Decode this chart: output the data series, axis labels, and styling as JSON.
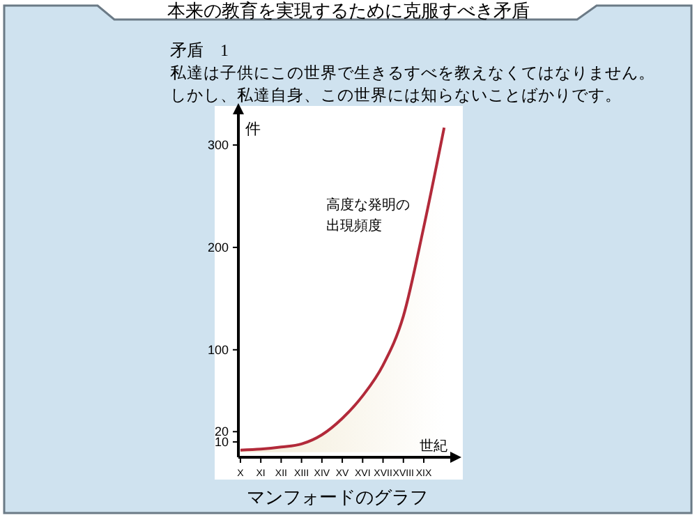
{
  "chart_data": {
    "type": "area",
    "title": "本来の教育を実現するために克服すべき矛盾",
    "subtitle": "矛盾　1",
    "annotations": [
      "私達は子供にこの世界で生きるすべを教えなくてはなりません。",
      "しかし、私達自身、この世界には知らないことばかりです。",
      "高度な発明の出現頻度",
      "マンフォードのグラフ"
    ],
    "xlabel": "世紀",
    "ylabel": "件",
    "categories": [
      "X",
      "XI",
      "XII",
      "XIII",
      "XIV",
      "XV",
      "XVI",
      "XVII",
      "XVIII",
      "XIX",
      null
    ],
    "series": [
      {
        "color": "#b22a3a",
        "values": [
          2,
          3,
          5,
          8,
          17,
          33,
          55,
          85,
          133,
          220,
          317
        ]
      }
    ],
    "ylim": [
      -5,
      330
    ],
    "yticks": [
      10,
      20,
      100,
      200,
      300
    ],
    "grid": false
  }
}
